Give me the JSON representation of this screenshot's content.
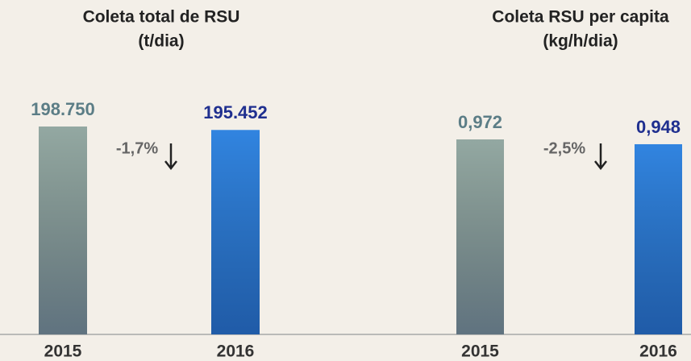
{
  "chart_data": [
    {
      "type": "bar",
      "title": "Coleta total de RSU",
      "subtitle": "(t/dia)",
      "categories": [
        "2015",
        "2016"
      ],
      "values": [
        198750,
        195452
      ],
      "value_labels": [
        "198.750",
        "195.452"
      ],
      "colors": [
        "#93a8a2",
        "#3184e0"
      ],
      "annotation": "-1,7%"
    },
    {
      "type": "bar",
      "title": "Coleta RSU per capita",
      "subtitle": "(kg/h/dia)",
      "categories": [
        "2015",
        "2016"
      ],
      "values": [
        0.972,
        0.948
      ],
      "value_labels": [
        "0,972",
        "0,948"
      ],
      "colors": [
        "#93a8a2",
        "#3184e0"
      ],
      "annotation": "-2,5%"
    }
  ]
}
